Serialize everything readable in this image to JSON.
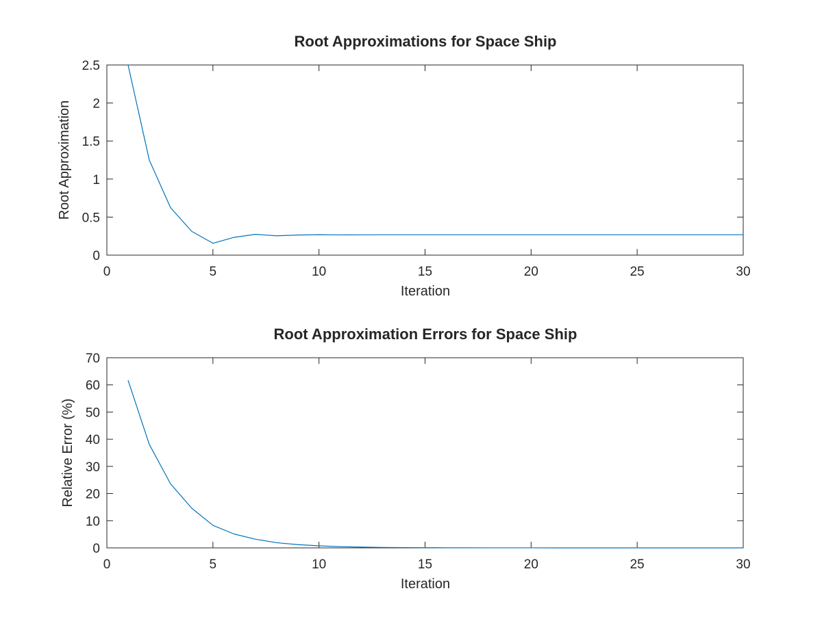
{
  "chart_data": [
    {
      "type": "line",
      "title": "Root Approximations for Space Ship",
      "xlabel": "Iteration",
      "ylabel": "Root Approximation",
      "xlim": [
        0,
        30
      ],
      "ylim": [
        0,
        2.5
      ],
      "xticks": [
        "0",
        "5",
        "10",
        "15",
        "20",
        "25",
        "30"
      ],
      "yticks": [
        "0",
        "0.5",
        "1",
        "1.5",
        "2",
        "2.5"
      ],
      "xtick_values": [
        0,
        5,
        10,
        15,
        20,
        25,
        30
      ],
      "ytick_values": [
        0,
        0.5,
        1,
        1.5,
        2,
        2.5
      ],
      "grid": false,
      "series_color": "#0072bd",
      "x": [
        1,
        2,
        3,
        4,
        5,
        6,
        7,
        8,
        9,
        10,
        11,
        12,
        13,
        14,
        15,
        16,
        17,
        18,
        19,
        20,
        21,
        22,
        23,
        24,
        25,
        26,
        27,
        28,
        29,
        30
      ],
      "y": [
        2.5,
        1.25,
        0.625,
        0.3125,
        0.156,
        0.234,
        0.273,
        0.254,
        0.264,
        0.269,
        0.266,
        0.267,
        0.268,
        0.268,
        0.268,
        0.268,
        0.268,
        0.268,
        0.268,
        0.268,
        0.268,
        0.268,
        0.268,
        0.268,
        0.268,
        0.268,
        0.268,
        0.268,
        0.268,
        0.268
      ]
    },
    {
      "type": "line",
      "title": "Root Approximation Errors for Space Ship",
      "xlabel": "Iteration",
      "ylabel": "Relative Error (%)",
      "xlim": [
        0,
        30
      ],
      "ylim": [
        0,
        70
      ],
      "xticks": [
        "0",
        "5",
        "10",
        "15",
        "20",
        "25",
        "30"
      ],
      "yticks": [
        "0",
        "10",
        "20",
        "30",
        "40",
        "50",
        "60",
        "70"
      ],
      "xtick_values": [
        0,
        5,
        10,
        15,
        20,
        25,
        30
      ],
      "ytick_values": [
        0,
        10,
        20,
        30,
        40,
        50,
        60,
        70
      ],
      "grid": false,
      "series_color": "#0072bd",
      "x": [
        1,
        2,
        3,
        4,
        5,
        6,
        7,
        8,
        9,
        10,
        11,
        12,
        13,
        14,
        15,
        16,
        17,
        18,
        19,
        20,
        21,
        22,
        23,
        24,
        25,
        26,
        27,
        28,
        29,
        30
      ],
      "y": [
        61.7,
        38.1,
        23.6,
        14.6,
        8.3,
        5.1,
        3.2,
        1.9,
        1.2,
        0.75,
        0.46,
        0.29,
        0.18,
        0.11,
        0.07,
        0.04,
        0.03,
        0.02,
        0.01,
        0.01,
        0,
        0,
        0,
        0,
        0,
        0,
        0,
        0,
        0,
        0
      ]
    }
  ]
}
